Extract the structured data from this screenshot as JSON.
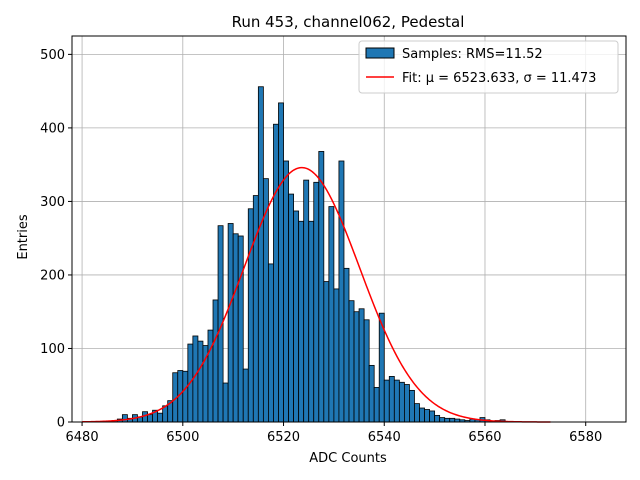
{
  "chart_data": {
    "type": "bar",
    "title": "Run 453, channel062, Pedestal",
    "xlabel": "ADC Counts",
    "ylabel": "Entries",
    "xlim": [
      6478,
      6588
    ],
    "ylim": [
      0,
      525
    ],
    "xticks": [
      6480,
      6500,
      6520,
      6540,
      6560,
      6580
    ],
    "yticks": [
      0,
      100,
      200,
      300,
      400,
      500
    ],
    "grid": true,
    "legend_position": "top-right",
    "colors": {
      "bar_fill": "#1f77b4",
      "bar_edge": "#000000",
      "fit_line": "#ff0000"
    },
    "histogram": {
      "name": "Samples: RMS=11.52",
      "bin_width": 1,
      "bin_start": [
        6485,
        6486,
        6487,
        6488,
        6489,
        6490,
        6491,
        6492,
        6493,
        6494,
        6495,
        6496,
        6497,
        6498,
        6499,
        6500,
        6501,
        6502,
        6503,
        6504,
        6505,
        6506,
        6507,
        6508,
        6509,
        6510,
        6511,
        6512,
        6513,
        6514,
        6515,
        6516,
        6517,
        6518,
        6519,
        6520,
        6521,
        6522,
        6523,
        6524,
        6525,
        6526,
        6527,
        6528,
        6529,
        6530,
        6531,
        6532,
        6533,
        6534,
        6535,
        6536,
        6537,
        6538,
        6539,
        6540,
        6541,
        6542,
        6543,
        6544,
        6545,
        6546,
        6547,
        6548,
        6549,
        6550,
        6551,
        6552,
        6553,
        6554,
        6555,
        6556,
        6557,
        6558,
        6559,
        6560,
        6561,
        6562,
        6563
      ],
      "counts": [
        1,
        2,
        4,
        10,
        5,
        10,
        7,
        14,
        10,
        16,
        12,
        22,
        29,
        67,
        70,
        69,
        106,
        117,
        110,
        104,
        125,
        166,
        267,
        53,
        270,
        256,
        253,
        72,
        290,
        308,
        456,
        331,
        215,
        405,
        434,
        355,
        310,
        287,
        273,
        329,
        273,
        326,
        368,
        191,
        293,
        181,
        355,
        209,
        165,
        150,
        154,
        139,
        77,
        47,
        148,
        57,
        62,
        57,
        54,
        51,
        43,
        25,
        19,
        17,
        15,
        9,
        6,
        5,
        5,
        4,
        3,
        2,
        4,
        3,
        6,
        3,
        1,
        2,
        3
      ]
    },
    "fit": {
      "name": "Fit: μ = 6523.633, σ = 11.473",
      "type": "gaussian",
      "mu": 6523.633,
      "sigma": 11.473,
      "amplitude": 346,
      "x_range": [
        6480,
        6573
      ]
    }
  }
}
